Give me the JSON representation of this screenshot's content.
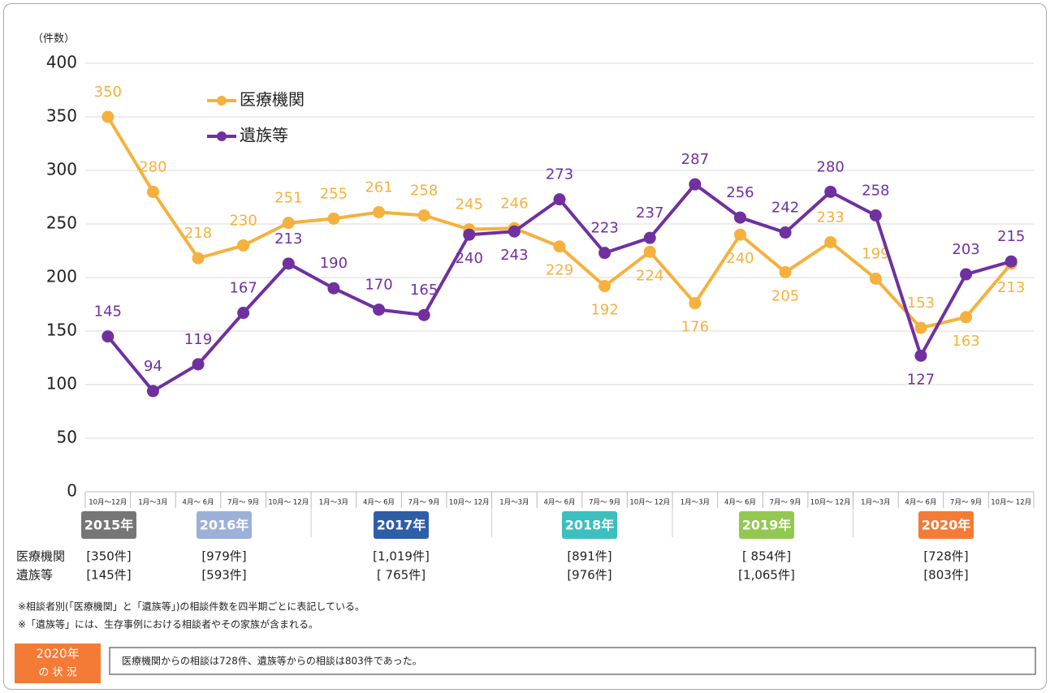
{
  "chart_data": {
    "type": "line",
    "ylabel": "（件数）",
    "categories": [
      "10月～12月",
      "1月～3月",
      "4月～ 6月",
      "7月～ 9月",
      "10月～ 12月",
      "1月～3月",
      "4月～ 6月",
      "7月～ 9月",
      "10月～ 12月",
      "1月～3月",
      "4月～ 6月",
      "7月～ 9月",
      "10月～ 12月",
      "1月～3月",
      "4月～ 6月",
      "7月～ 9月",
      "10月～ 12月",
      "1月～3月",
      "4月～ 6月",
      "7月～ 9月",
      "10月～ 12月"
    ],
    "series": [
      {
        "name": "医療機関",
        "color": "#f5b13d",
        "values": [
          350,
          280,
          218,
          230,
          251,
          255,
          261,
          258,
          245,
          246,
          229,
          192,
          224,
          176,
          240,
          205,
          233,
          199,
          153,
          163,
          213
        ]
      },
      {
        "name": "遺族等",
        "color": "#7030a0",
        "values": [
          145,
          94,
          119,
          167,
          213,
          190,
          170,
          165,
          240,
          243,
          273,
          223,
          237,
          287,
          256,
          242,
          280,
          258,
          127,
          203,
          215
        ]
      }
    ],
    "ylim": [
      0,
      400
    ],
    "yticks": [
      0,
      50,
      100,
      150,
      200,
      250,
      300,
      350,
      400
    ],
    "grid": true
  },
  "year_summary": {
    "row_labels": [
      "医療機関",
      "遺族等"
    ],
    "years": [
      {
        "year": "2015年",
        "color": "#767676",
        "medical": "[350件]",
        "family": "[145件]"
      },
      {
        "year": "2016年",
        "color": "#9db0d8",
        "medical": "[979件]",
        "family": "[593件]"
      },
      {
        "year": "2017年",
        "color": "#2f5ea8",
        "medical": "[1,019件]",
        "family": "[ 765件]"
      },
      {
        "year": "2018年",
        "color": "#3cbfbf",
        "medical": "[891件]",
        "family": "[976件]"
      },
      {
        "year": "2019年",
        "color": "#92c850",
        "medical": "[ 854件]",
        "family": "[1,065件]"
      },
      {
        "year": "2020年",
        "color": "#f47b35",
        "medical": "[728件]",
        "family": "[803件]"
      }
    ]
  },
  "notes": [
    "※相談者別(「医療機関」と「遺族等」)の相談件数を四半期ごとに表記している。",
    "※「遺族等」には、生存事例における相談者やその家族が含まれる。"
  ],
  "status": {
    "badge": [
      "2020年",
      "の 状 況"
    ],
    "text": "医療機関からの相談は728件、遺族等からの相談は803件であった。"
  }
}
